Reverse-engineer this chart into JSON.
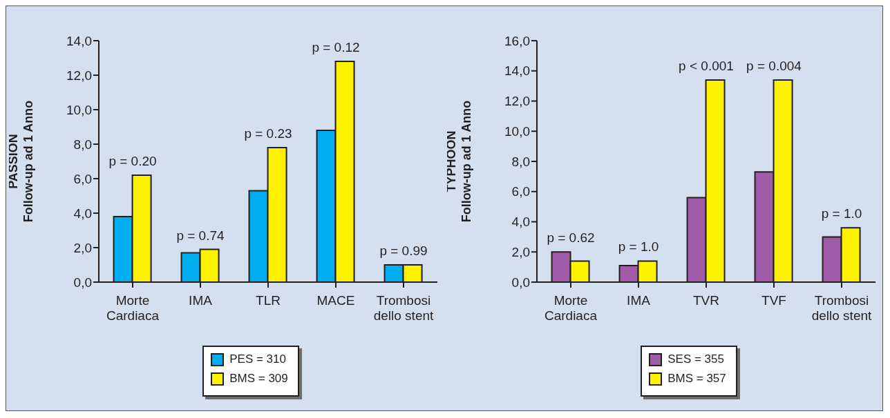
{
  "chart_data": [
    {
      "type": "bar",
      "ylabel": "PASSION\nFollow-up ad 1 Anno",
      "categories": [
        "Morte\nCardiaca",
        "IMA",
        "TLR",
        "MACE",
        "Trombosi\ndello stent"
      ],
      "series": [
        {
          "name": "PES = 310",
          "color": "#00aeef",
          "values": [
            3.8,
            1.7,
            5.3,
            8.8,
            1.0
          ]
        },
        {
          "name": "BMS = 309",
          "color": "#fff200",
          "values": [
            6.2,
            1.9,
            7.8,
            12.8,
            1.0
          ]
        }
      ],
      "ylim": [
        0,
        14
      ],
      "yticks": [
        {
          "value": 0,
          "label": "0,0"
        },
        {
          "value": 2,
          "label": "2,0"
        },
        {
          "value": 4,
          "label": "4,0"
        },
        {
          "value": 6,
          "label": "6,0"
        },
        {
          "value": 8,
          "label": "8,0"
        },
        {
          "value": 10,
          "label": "10,0"
        },
        {
          "value": 12,
          "label": "12,0"
        },
        {
          "value": 14,
          "label": "14,0"
        }
      ],
      "annotations": [
        {
          "text": "p = 0.20",
          "x": "Morte\nCardiaca",
          "y": 6.2
        },
        {
          "text": "p = 0.74",
          "x": "IMA",
          "y": 1.9
        },
        {
          "text": "p = 0.23",
          "x": "TLR",
          "y": 7.8
        },
        {
          "text": "p = 0.12",
          "x": "MACE",
          "y": 12.8
        },
        {
          "text": "p = 0.99",
          "x": "Trombosi\ndello stent",
          "y": 1.0
        }
      ],
      "legend": "bottom"
    },
    {
      "type": "bar",
      "ylabel": "TYPHOON\nFollow-up ad 1 Anno",
      "categories": [
        "Morte\nCardiaca",
        "IMA",
        "TVR",
        "TVF",
        "Trombosi\ndello stent"
      ],
      "series": [
        {
          "name": "SES = 355",
          "color": "#a05ca8",
          "values": [
            2.0,
            1.1,
            5.6,
            7.3,
            3.0
          ]
        },
        {
          "name": "BMS = 357",
          "color": "#fff200",
          "values": [
            1.4,
            1.4,
            13.4,
            13.4,
            3.6
          ]
        }
      ],
      "ylim": [
        0,
        16
      ],
      "yticks": [
        {
          "value": 0,
          "label": "0,0"
        },
        {
          "value": 2,
          "label": "2,0"
        },
        {
          "value": 4,
          "label": "4,0"
        },
        {
          "value": 6,
          "label": "6,0"
        },
        {
          "value": 8,
          "label": "8,0"
        },
        {
          "value": 10,
          "label": "10,0"
        },
        {
          "value": 12,
          "label": "12,0"
        },
        {
          "value": 14,
          "label": "14,0"
        },
        {
          "value": 16,
          "label": "16,0"
        }
      ],
      "annotations": [
        {
          "text": "p = 0.62",
          "x": "Morte\nCardiaca",
          "y": 2.0
        },
        {
          "text": "p = 1.0",
          "x": "IMA",
          "y": 1.4
        },
        {
          "text": "p < 0.001",
          "x": "TVR",
          "y": 13.4
        },
        {
          "text": "p = 0.004",
          "x": "TVF",
          "y": 13.4
        },
        {
          "text": "p = 1.0",
          "x": "Trombosi\ndello stent",
          "y": 3.6
        }
      ],
      "legend": "bottom"
    }
  ]
}
